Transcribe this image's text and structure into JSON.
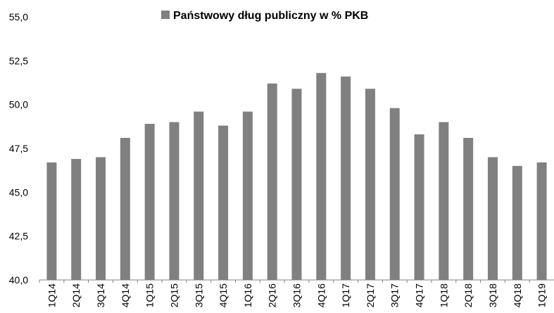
{
  "chart_data": {
    "type": "bar",
    "categories": [
      "1Q14",
      "2Q14",
      "3Q14",
      "4Q14",
      "1Q15",
      "2Q15",
      "3Q15",
      "4Q15",
      "1Q16",
      "2Q16",
      "3Q16",
      "4Q16",
      "1Q17",
      "2Q17",
      "3Q17",
      "4Q17",
      "1Q18",
      "2Q18",
      "3Q18",
      "4Q18",
      "1Q19"
    ],
    "series": [
      {
        "name": "Państwowy dług publiczny w % PKB",
        "color": "#808080",
        "values": [
          46.7,
          46.9,
          47.0,
          48.1,
          48.9,
          49.0,
          49.6,
          48.8,
          49.6,
          51.2,
          50.9,
          51.8,
          51.6,
          50.9,
          49.8,
          48.3,
          49.0,
          48.1,
          47.0,
          46.5,
          46.7
        ]
      }
    ],
    "ylim": [
      40.0,
      55.0
    ],
    "yticks": [
      "40,0",
      "42,5",
      "45,0",
      "47,5",
      "50,0",
      "52,5",
      "55,0"
    ],
    "ytick_values": [
      40.0,
      42.5,
      45.0,
      47.5,
      50.0,
      52.5,
      55.0
    ],
    "legend_position": "top-center",
    "grid": false
  }
}
